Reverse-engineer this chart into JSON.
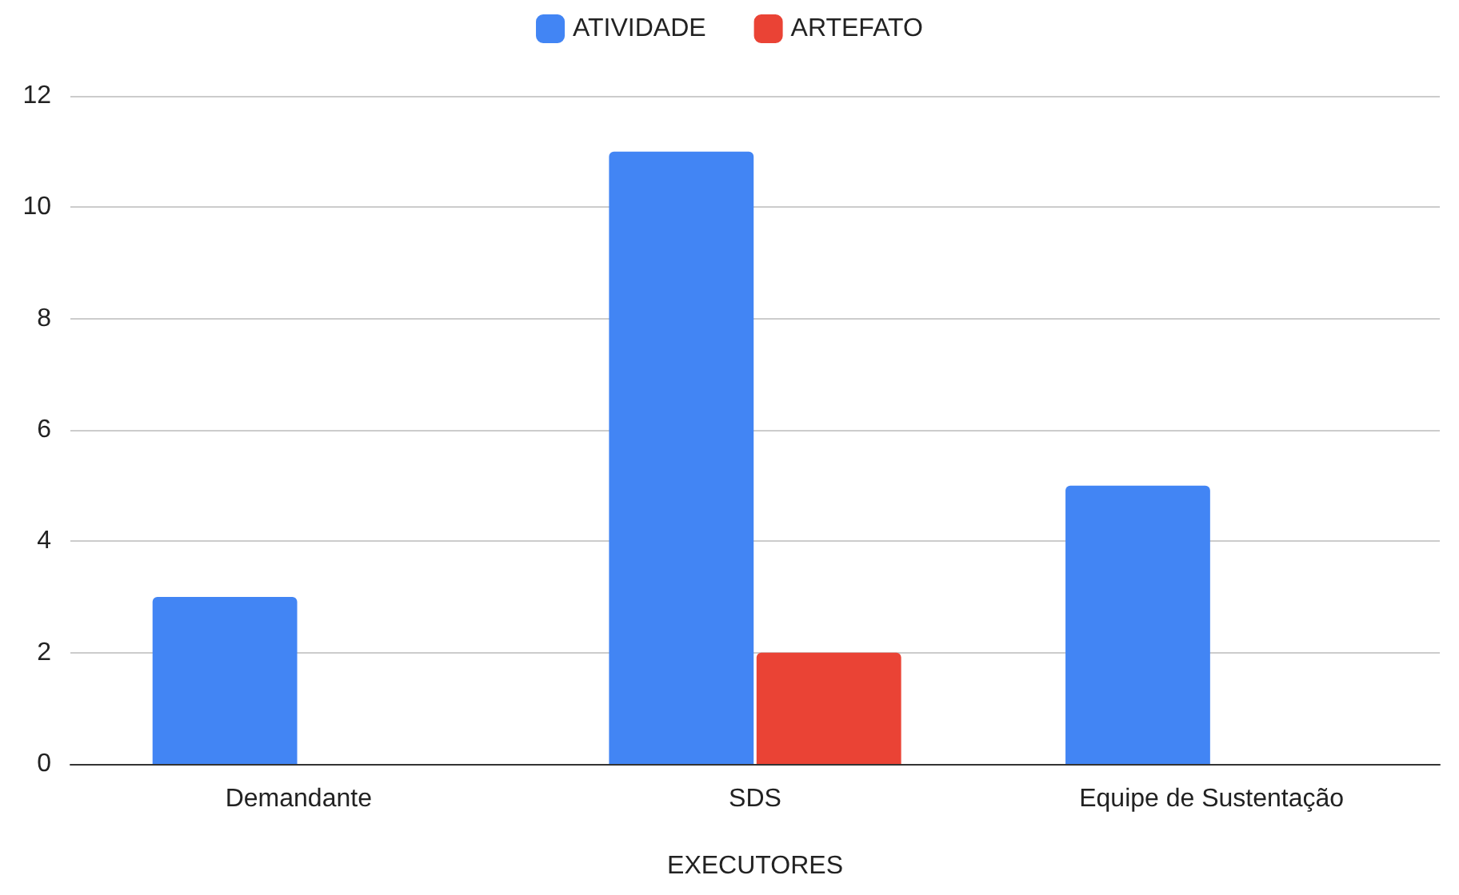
{
  "chart_data": {
    "type": "bar",
    "xlabel": "EXECUTORES",
    "categories": [
      "Demandante",
      "SDS",
      "Equipe de Sustentação"
    ],
    "series": [
      {
        "name": "ATIVIDADE",
        "color": "#4285f4",
        "values": [
          3,
          11,
          5
        ]
      },
      {
        "name": "ARTEFATO",
        "color": "#ea4335",
        "values": [
          0,
          2,
          0
        ]
      }
    ],
    "ylim": [
      0,
      12
    ],
    "yticks": [
      0,
      2,
      4,
      6,
      8,
      10,
      12
    ],
    "grid": "y",
    "legend": "top"
  }
}
